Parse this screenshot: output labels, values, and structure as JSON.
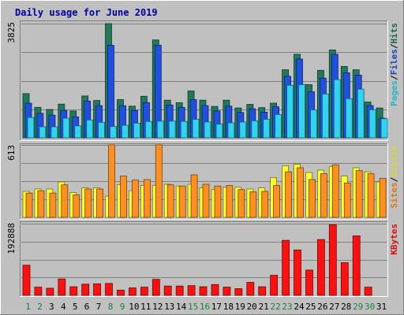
{
  "chart_data": {
    "type": "bar",
    "title": "Daily usage for June 2019",
    "x": [
      "1",
      "2",
      "3",
      "4",
      "5",
      "6",
      "7",
      "8",
      "9",
      "10",
      "11",
      "12",
      "13",
      "14",
      "15",
      "16",
      "17",
      "18",
      "19",
      "20",
      "21",
      "22",
      "23",
      "24",
      "25",
      "26",
      "27",
      "28",
      "29",
      "30",
      "31"
    ],
    "weekend_days": [
      "1",
      "2",
      "8",
      "9",
      "15",
      "16",
      "22",
      "23",
      "29",
      "30"
    ],
    "panels": [
      {
        "name": "pages-files-hits",
        "ylabel_max": "3825",
        "ylim": [
          0,
          3825
        ],
        "grid": true,
        "legend": [
          "Pages",
          "/",
          "Files",
          "/",
          "Hits"
        ],
        "series": [
          {
            "name": "Hits",
            "color": "#1f7a5c",
            "values": [
              1480,
              1020,
              950,
              1130,
              900,
              1400,
              1250,
              3825,
              1280,
              1060,
              1390,
              3280,
              1260,
              1180,
              1570,
              1260,
              1050,
              1260,
              1000,
              1120,
              1010,
              1160,
              2280,
              2800,
              1780,
              2260,
              2940,
              2390,
              2280,
              1200,
              1000
            ]
          },
          {
            "name": "Files",
            "color": "#2050e0",
            "values": [
              1160,
              820,
              760,
              920,
              700,
              1230,
              1080,
              3100,
              1080,
              920,
              1180,
              3100,
              1100,
              1020,
              1280,
              1080,
              900,
              1060,
              850,
              970,
              860,
              1040,
              2060,
              2640,
              1540,
              2000,
              2800,
              2180,
              2100,
              1080,
              660
            ]
          },
          {
            "name": "Pages",
            "color": "#30d4f0",
            "values": [
              680,
              370,
              370,
              660,
              400,
              600,
              520,
              380,
              420,
              490,
              550,
              560,
              560,
              550,
              620,
              530,
              460,
              500,
              530,
              570,
              620,
              780,
              1760,
              1780,
              940,
              1470,
              1950,
              1310,
              1630,
              940,
              640
            ]
          }
        ]
      },
      {
        "name": "sites-visits",
        "ylabel_max": "613",
        "ylim": [
          0,
          613
        ],
        "grid": true,
        "legend": [
          "Sites",
          "/",
          "Visits"
        ],
        "series": [
          {
            "name": "Visits",
            "color": "#ffff30",
            "values": [
              220,
              240,
              240,
              300,
              210,
              250,
              250,
              180,
              275,
              225,
              270,
              270,
              280,
              265,
              280,
              250,
              235,
              255,
              255,
              240,
              250,
              335,
              435,
              450,
              380,
              400,
              430,
              350,
              420,
              385,
              300
            ]
          },
          {
            "name": "Sites",
            "color": "#ff9020",
            "values": [
              205,
              225,
              205,
              275,
              190,
              240,
              240,
              613,
              350,
              315,
              320,
              613,
              275,
              265,
              360,
              280,
              265,
              270,
              235,
              215,
              220,
              270,
              385,
              420,
              320,
              370,
              445,
              290,
              395,
              370,
              330
            ]
          }
        ]
      },
      {
        "name": "kbytes",
        "ylabel_max": "192888",
        "ylim": [
          0,
          192888
        ],
        "grid": true,
        "legend": [
          "KBytes"
        ],
        "series": [
          {
            "name": "KBytes",
            "color": "#ff1010",
            "values": [
              81000,
              22000,
              19000,
              44000,
              23000,
              30000,
              31000,
              32000,
              14000,
              20000,
              22000,
              43000,
              25000,
              25000,
              26000,
              23000,
              29000,
              22000,
              18000,
              35000,
              23000,
              54000,
              148000,
              122000,
              68000,
              150000,
              190000,
              88000,
              160000,
              22000,
              0
            ]
          }
        ]
      }
    ]
  }
}
